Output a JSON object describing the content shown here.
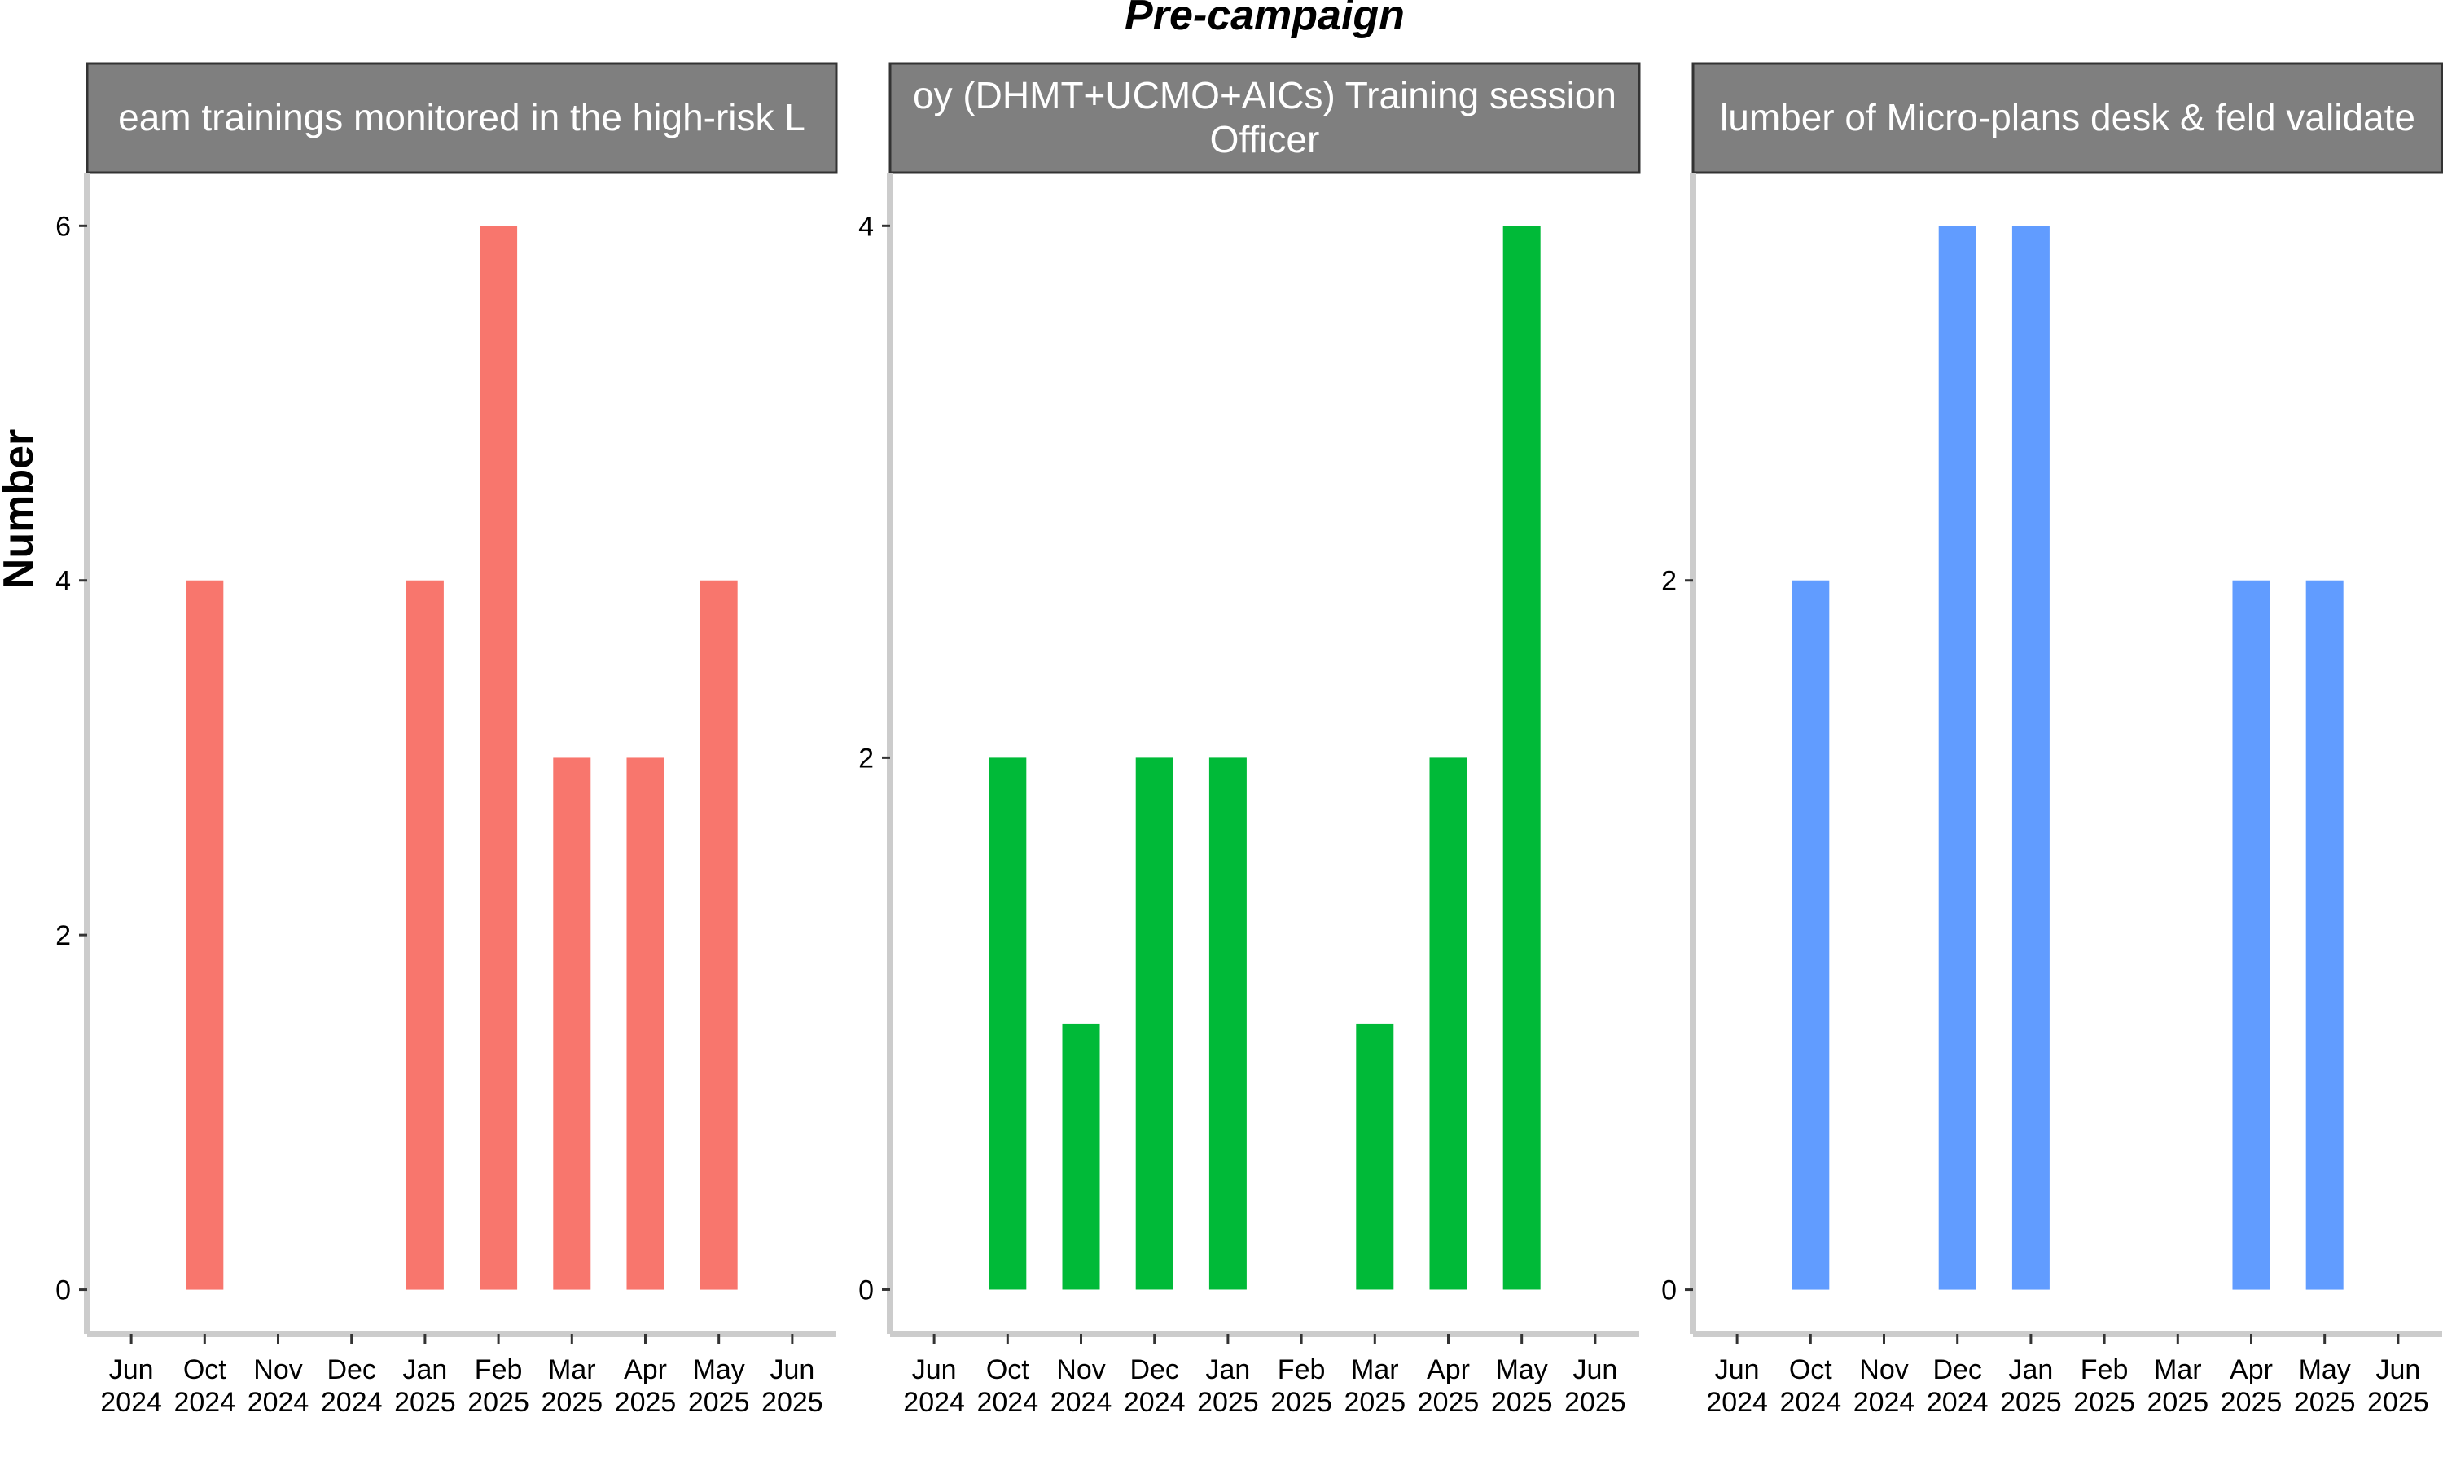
{
  "chart_data": {
    "type": "bar",
    "title": "Pre-campaign",
    "ylabel": "Number",
    "xlabel": "",
    "x_tick_labels": [
      [
        "Jun",
        "2024"
      ],
      [
        "Oct",
        "2024"
      ],
      [
        "Nov",
        "2024"
      ],
      [
        "Dec",
        "2024"
      ],
      [
        "Jan",
        "2025"
      ],
      [
        "Feb",
        "2025"
      ],
      [
        "Mar",
        "2025"
      ],
      [
        "Apr",
        "2025"
      ],
      [
        "May",
        "2025"
      ],
      [
        "Jun",
        "2025"
      ]
    ],
    "panels": [
      {
        "strip_lines": [
          "eam trainings monitored in the high-risk L"
        ],
        "color": "#F8766D",
        "ylim": [
          -0.25,
          6.3
        ],
        "yticks": [
          0,
          2,
          4,
          6
        ],
        "values": [
          null,
          4,
          null,
          null,
          4,
          6,
          3,
          3,
          4,
          null
        ]
      },
      {
        "strip_lines": [
          "oy (DHMT+UCMO+AICs) Training session",
          "Officer"
        ],
        "color": "#00BA38",
        "ylim": [
          -0.167,
          4.2
        ],
        "yticks": [
          0,
          2,
          4
        ],
        "values": [
          null,
          2,
          1,
          2,
          2,
          null,
          1,
          2,
          4,
          null
        ]
      },
      {
        "strip_lines": [
          "lumber of Micro-plans desk & feld validate"
        ],
        "color": "#619CFF",
        "ylim": [
          -0.125,
          3.15
        ],
        "yticks": [
          0,
          2
        ],
        "values": [
          null,
          2,
          null,
          3,
          3,
          null,
          null,
          2,
          2,
          null
        ]
      }
    ]
  }
}
